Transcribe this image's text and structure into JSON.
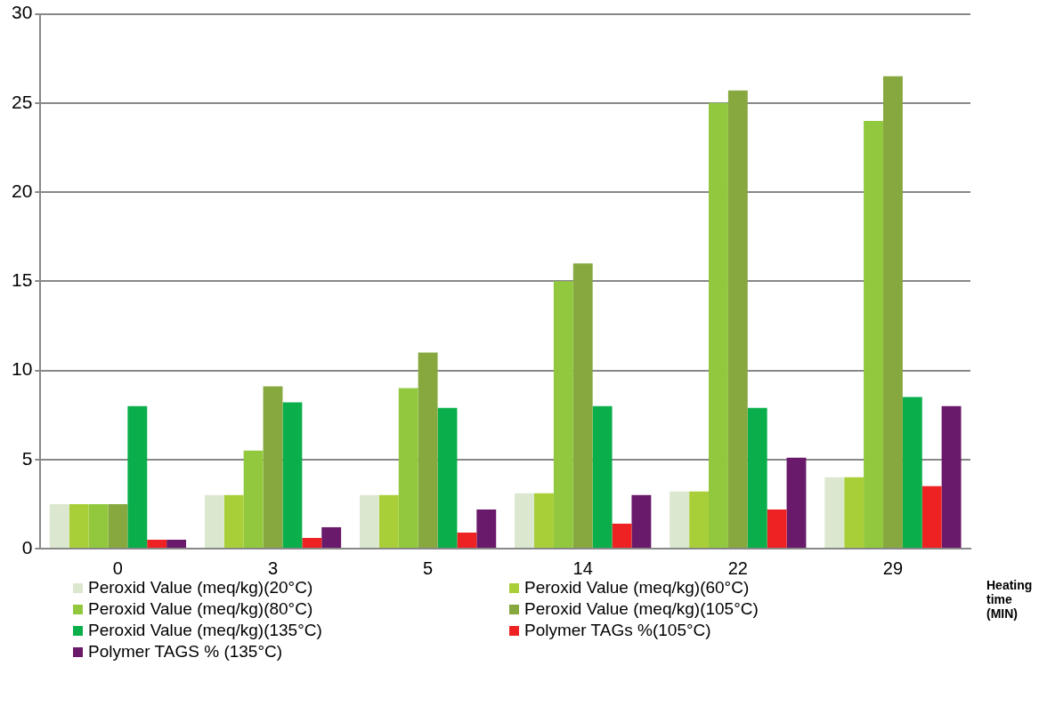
{
  "chart_data": {
    "type": "bar",
    "xlabel": "Heating time (MIN)",
    "categories": [
      "0",
      "3",
      "5",
      "14",
      "22",
      "29"
    ],
    "series": [
      {
        "name": "Peroxid Value (meq/kg)(20°C)",
        "color": "#dbe8cf",
        "values": [
          2.5,
          3,
          3,
          3.1,
          3.2,
          4
        ]
      },
      {
        "name": "Peroxid Value (meq/kg)(60°C)",
        "color": "#a9cf38",
        "values": [
          2.5,
          3,
          3,
          3.1,
          3.2,
          4
        ]
      },
      {
        "name": "Peroxid Value (meq/kg)(80°C)",
        "color": "#92c83e",
        "values": [
          2.5,
          5.5,
          9,
          15,
          25,
          24
        ]
      },
      {
        "name": "Peroxid Value (meq/kg)(105°C)",
        "color": "#86a83f",
        "values": [
          2.5,
          9.1,
          11,
          16,
          25.7,
          26.5
        ]
      },
      {
        "name": "Peroxid Value (meq/kg)(135°C)",
        "color": "#0aae4a",
        "values": [
          8,
          8.2,
          7.9,
          8,
          7.9,
          8.5
        ]
      },
      {
        "name": "Polymer TAGs %(105°C)",
        "color": "#ee2222",
        "values": [
          0.5,
          0.6,
          0.9,
          1.4,
          2.2,
          3.5
        ]
      },
      {
        "name": "Polymer TAGS % (135°C)",
        "color": "#6a1a6a",
        "values": [
          0.5,
          1.2,
          2.2,
          3,
          5.1,
          8
        ]
      }
    ],
    "ylim": [
      0,
      30
    ],
    "yticks": [
      0,
      5,
      10,
      15,
      20,
      25,
      30
    ],
    "grid": "y",
    "legend": "bottom"
  }
}
